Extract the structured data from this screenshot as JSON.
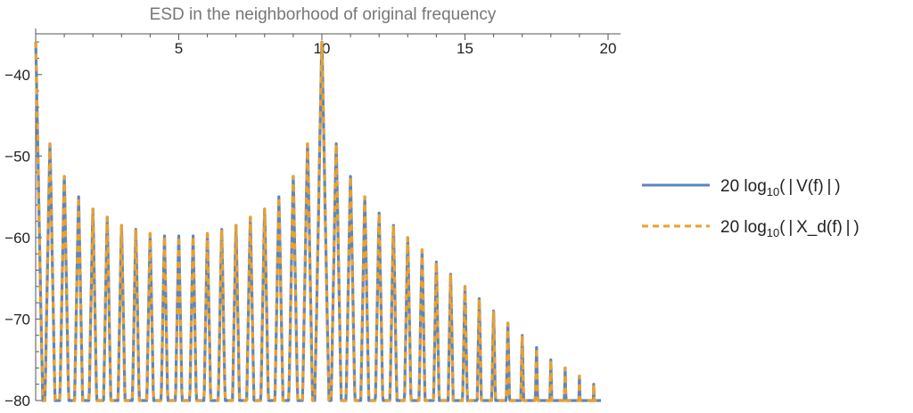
{
  "chart_data": {
    "type": "line",
    "title": "ESD in the neighborhood of original frequency",
    "xlabel": "",
    "ylabel": "",
    "xlim": [
      0,
      20
    ],
    "ylim": [
      -80,
      -35
    ],
    "x_ticks": [
      5,
      10,
      15,
      20
    ],
    "y_ticks": [
      -40,
      -50,
      -60,
      -70,
      -80
    ],
    "grid": false,
    "legend_position": "right",
    "peaks": [
      {
        "x": 0.0,
        "y": -36
      },
      {
        "x": 10.0,
        "y": -36
      }
    ],
    "series": [
      {
        "name_main": "20 log",
        "name_sub": "10",
        "name_tail": "( | V(f) | )",
        "color": "#5b86c0",
        "style": "solid",
        "sidelobe_x": [
          0.5,
          1.0,
          1.5,
          2.0,
          2.5,
          3.0,
          3.5,
          4.0,
          4.5,
          5.0,
          5.5,
          6.0,
          6.5,
          7.0,
          7.5,
          8.0,
          8.5,
          9.0,
          9.5,
          10.5,
          11.0,
          11.5,
          12.0,
          12.5,
          13.0,
          13.5,
          14.0,
          14.5,
          15.0,
          15.5,
          16.0,
          16.5,
          17.0,
          17.5,
          18.0,
          18.5,
          19.0,
          19.5
        ],
        "sidelobe_peak": [
          -48.5,
          -52.5,
          -55,
          -56.5,
          -57.5,
          -58.5,
          -59,
          -59.5,
          -59.8,
          -59.8,
          -59.8,
          -59.5,
          -59,
          -58.5,
          -57.5,
          -56.5,
          -55,
          -52.5,
          -48.5,
          -48.5,
          -52.5,
          -55,
          -57,
          -58.5,
          -60,
          -61.5,
          -63,
          -64.5,
          -66,
          -67.5,
          -69,
          -70.5,
          -72,
          -73.5,
          -75,
          -76,
          -77,
          -78
        ]
      },
      {
        "name_main": "20 log",
        "name_sub": "10",
        "name_tail": "( | X_d(f) | )",
        "color": "#e9a12e",
        "style": "dashed"
      }
    ]
  }
}
